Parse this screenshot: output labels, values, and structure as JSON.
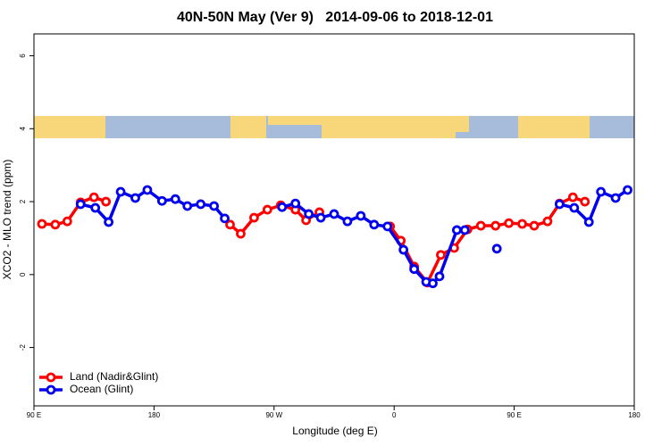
{
  "chart_data": {
    "type": "line",
    "title": "40N-50N May (Ver 9)   2014-09-06 to 2018-12-01",
    "x_label": "Longitude (deg E)",
    "y_label": "XCO2 - MLO trend (ppm)",
    "xlim": [
      90,
      540
    ],
    "ylim": [
      -3.6,
      6.6
    ],
    "xticks": [
      {
        "value": 90,
        "label": "90 E"
      },
      180,
      {
        "value": 270,
        "label": "90 W"
      },
      {
        "value": 360,
        "label": "0"
      },
      {
        "value": 450,
        "label": "90 E"
      },
      {
        "value": 540,
        "label": "180"
      }
    ],
    "yticks": [
      -2,
      0,
      2,
      4,
      6
    ],
    "legend": "bottom-left",
    "series": [
      {
        "name": "Land (Nadir&Glint)",
        "color": "#ff0000",
        "x": [
          96,
          106,
          115,
          125,
          135,
          144,
          null,
          237,
          245,
          255,
          265,
          275,
          286,
          294,
          304,
          null,
          357,
          365,
          375,
          385,
          395,
          405,
          415,
          425,
          436,
          446,
          456,
          465,
          475,
          484,
          494,
          503
        ],
        "values": [
          1.39,
          1.37,
          1.46,
          1.98,
          2.12,
          2.0,
          null,
          1.37,
          1.12,
          1.56,
          1.78,
          1.9,
          1.78,
          1.49,
          1.71,
          null,
          1.32,
          0.93,
          0.22,
          -0.22,
          0.54,
          0.73,
          1.24,
          1.34,
          1.34,
          1.41,
          1.39,
          1.34,
          1.46,
          1.95,
          2.12,
          2.0
        ]
      },
      {
        "name": "Ocean (Glint)",
        "color": "#0000ee",
        "x": [
          125,
          136,
          146,
          155,
          166,
          175,
          186,
          196,
          205,
          215,
          225,
          233,
          null,
          276,
          286,
          296,
          305,
          315,
          325,
          335,
          345,
          355,
          367,
          375,
          384,
          389,
          394,
          407,
          413,
          null,
          437,
          null,
          484,
          495,
          506,
          515,
          526,
          535
        ],
        "values": [
          1.93,
          1.83,
          1.44,
          2.27,
          2.1,
          2.32,
          2.02,
          2.07,
          1.88,
          1.93,
          1.88,
          1.54,
          null,
          1.85,
          1.95,
          1.66,
          1.56,
          1.66,
          1.46,
          1.61,
          1.37,
          1.32,
          0.68,
          0.15,
          -0.2,
          -0.24,
          -0.05,
          1.22,
          1.22,
          null,
          0.71,
          null,
          1.93,
          1.83,
          1.44,
          2.27,
          2.1,
          2.32
        ]
      }
    ]
  }
}
